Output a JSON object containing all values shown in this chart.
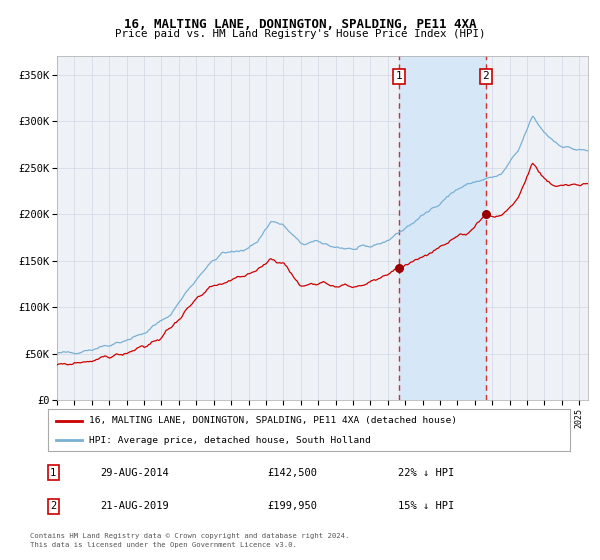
{
  "title1": "16, MALTING LANE, DONINGTON, SPALDING, PE11 4XA",
  "title2": "Price paid vs. HM Land Registry's House Price Index (HPI)",
  "ylim": [
    0,
    370000
  ],
  "xlim_start": 1995.0,
  "xlim_end": 2025.5,
  "yticks": [
    0,
    50000,
    100000,
    150000,
    200000,
    250000,
    300000,
    350000
  ],
  "ytick_labels": [
    "£0",
    "£50K",
    "£100K",
    "£150K",
    "£200K",
    "£250K",
    "£300K",
    "£350K"
  ],
  "legend_line1": "16, MALTING LANE, DONINGTON, SPALDING, PE11 4XA (detached house)",
  "legend_line2": "HPI: Average price, detached house, South Holland",
  "legend_color1": "#cc0000",
  "legend_color2": "#7ab0d4",
  "note1_num": "1",
  "note1_date": "29-AUG-2014",
  "note1_price": "£142,500",
  "note1_hpi": "22% ↓ HPI",
  "note2_num": "2",
  "note2_date": "21-AUG-2019",
  "note2_price": "£199,950",
  "note2_hpi": "15% ↓ HPI",
  "footer1": "Contains HM Land Registry data © Crown copyright and database right 2024.",
  "footer2": "This data is licensed under the Open Government Licence v3.0.",
  "sale1_year": 2014.66,
  "sale1_price": 142500,
  "sale2_year": 2019.64,
  "sale2_price": 199950,
  "background_color": "#ffffff",
  "plot_bg_color": "#eef2f7",
  "grid_color": "#d0d8e4",
  "line_color_red": "#cc0000",
  "line_color_blue": "#7ab0d4",
  "highlight_color": "#d6e8f7",
  "vline_color": "#cc3333",
  "marker_color": "#990000"
}
